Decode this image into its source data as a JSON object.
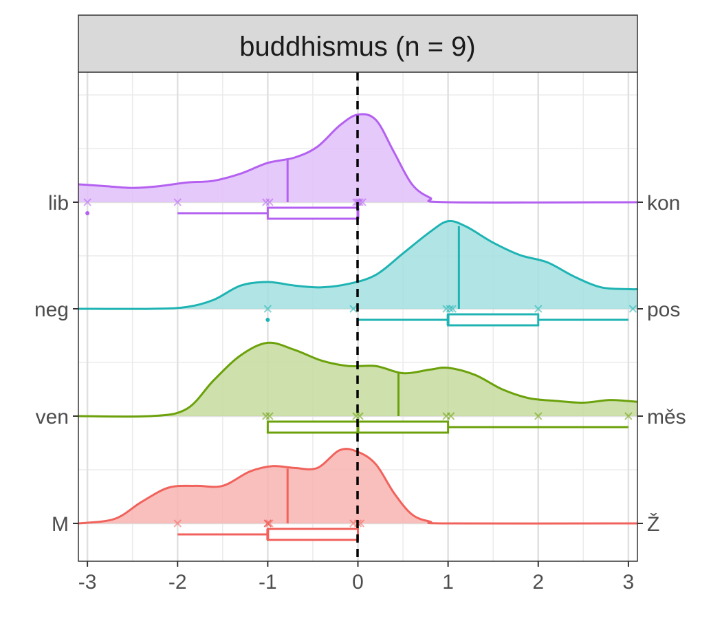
{
  "chart_data": {
    "type": "ridgeline-density-with-boxplots",
    "title": "",
    "strip": "buddhismus (n = 9)",
    "xlabel": "",
    "ylabel": "",
    "xlim": [
      -3.1,
      3.1
    ],
    "x_ticks": [
      "-3",
      "-2",
      "-1",
      "0",
      "1",
      "2",
      "3"
    ],
    "reference_line_x": 0,
    "grid": true,
    "legend": "none",
    "rows": [
      {
        "left_label": "M",
        "right_label": "Ž",
        "color": "#F0625B",
        "fill": "#F8B4B1",
        "mean": -0.78,
        "density": [
          [
            -3.1,
            0.0
          ],
          [
            -2.7,
            0.05
          ],
          [
            -2.4,
            0.24
          ],
          [
            -2.1,
            0.4
          ],
          [
            -1.8,
            0.42
          ],
          [
            -1.5,
            0.42
          ],
          [
            -1.2,
            0.58
          ],
          [
            -0.95,
            0.64
          ],
          [
            -0.7,
            0.62
          ],
          [
            -0.45,
            0.62
          ],
          [
            -0.2,
            0.82
          ],
          [
            0.0,
            0.8
          ],
          [
            0.2,
            0.66
          ],
          [
            0.4,
            0.34
          ],
          [
            0.6,
            0.1
          ],
          [
            0.8,
            0.02
          ],
          [
            1.0,
            0.0
          ],
          [
            3.1,
            0.0
          ]
        ],
        "points": [
          -2,
          -1,
          -1,
          -1,
          -0.98,
          -0.05,
          0.0,
          0.03
        ],
        "box": {
          "whisker_low": -2,
          "q1": -1,
          "median": -1,
          "q3": 0,
          "whisker_high": 0
        }
      },
      {
        "left_label": "ven",
        "right_label": "měs",
        "color": "#6BA10A",
        "fill": "#C5DA9D",
        "mean": 0.45,
        "density": [
          [
            -3.1,
            0.0
          ],
          [
            -2.3,
            0.0
          ],
          [
            -1.9,
            0.08
          ],
          [
            -1.6,
            0.4
          ],
          [
            -1.3,
            0.68
          ],
          [
            -1.0,
            0.82
          ],
          [
            -0.7,
            0.74
          ],
          [
            -0.4,
            0.62
          ],
          [
            -0.1,
            0.56
          ],
          [
            0.2,
            0.56
          ],
          [
            0.5,
            0.48
          ],
          [
            0.8,
            0.52
          ],
          [
            1.0,
            0.54
          ],
          [
            1.3,
            0.46
          ],
          [
            1.6,
            0.3
          ],
          [
            1.9,
            0.2
          ],
          [
            2.2,
            0.17
          ],
          [
            2.5,
            0.15
          ],
          [
            2.8,
            0.18
          ],
          [
            3.1,
            0.16
          ]
        ],
        "points": [
          -1.02,
          -0.98,
          -0.02,
          0.02,
          0.98,
          1.03,
          2.0,
          3.0
        ],
        "box": {
          "whisker_low": -1,
          "q1": -1,
          "median": 0,
          "q3": 1,
          "whisker_high": 3
        }
      },
      {
        "left_label": "neg",
        "right_label": "pos",
        "color": "#1FB3B3",
        "fill": "#A3E0E0",
        "mean": 1.12,
        "density": [
          [
            -3.1,
            0.0
          ],
          [
            -2.3,
            0.0
          ],
          [
            -1.9,
            0.02
          ],
          [
            -1.6,
            0.1
          ],
          [
            -1.3,
            0.26
          ],
          [
            -1.0,
            0.3
          ],
          [
            -0.7,
            0.26
          ],
          [
            -0.4,
            0.24
          ],
          [
            -0.1,
            0.28
          ],
          [
            0.2,
            0.38
          ],
          [
            0.5,
            0.62
          ],
          [
            0.8,
            0.86
          ],
          [
            1.0,
            0.98
          ],
          [
            1.2,
            0.92
          ],
          [
            1.5,
            0.74
          ],
          [
            1.8,
            0.6
          ],
          [
            2.1,
            0.52
          ],
          [
            2.4,
            0.36
          ],
          [
            2.7,
            0.24
          ],
          [
            3.0,
            0.22
          ],
          [
            3.1,
            0.22
          ]
        ],
        "points": [
          -1,
          -0.05,
          0.98,
          1.02,
          1.05,
          2.0,
          3.05
        ],
        "box": {
          "whisker_low": 0,
          "q1": 1,
          "median": 1,
          "q3": 2,
          "whisker_high": 3
        },
        "outliers": [
          -1
        ]
      },
      {
        "left_label": "lib",
        "right_label": "kon",
        "color": "#B460F0",
        "fill": "#E2BFFA",
        "mean": -0.78,
        "density": [
          [
            -3.1,
            0.2
          ],
          [
            -2.8,
            0.18
          ],
          [
            -2.5,
            0.16
          ],
          [
            -2.2,
            0.18
          ],
          [
            -1.9,
            0.22
          ],
          [
            -1.6,
            0.24
          ],
          [
            -1.3,
            0.32
          ],
          [
            -1.0,
            0.44
          ],
          [
            -0.7,
            0.5
          ],
          [
            -0.45,
            0.62
          ],
          [
            -0.2,
            0.86
          ],
          [
            0.0,
            0.98
          ],
          [
            0.2,
            0.92
          ],
          [
            0.4,
            0.56
          ],
          [
            0.6,
            0.2
          ],
          [
            0.8,
            0.05
          ],
          [
            1.0,
            0.0
          ],
          [
            3.1,
            0.0
          ]
        ],
        "points": [
          -3,
          -2,
          -1.02,
          -0.98,
          -0.02,
          0.0,
          0.02,
          0.05
        ],
        "box": {
          "whisker_low": -2,
          "q1": -1,
          "median": 0,
          "q3": 0,
          "whisker_high": 0
        },
        "outliers": [
          -3
        ]
      }
    ]
  }
}
